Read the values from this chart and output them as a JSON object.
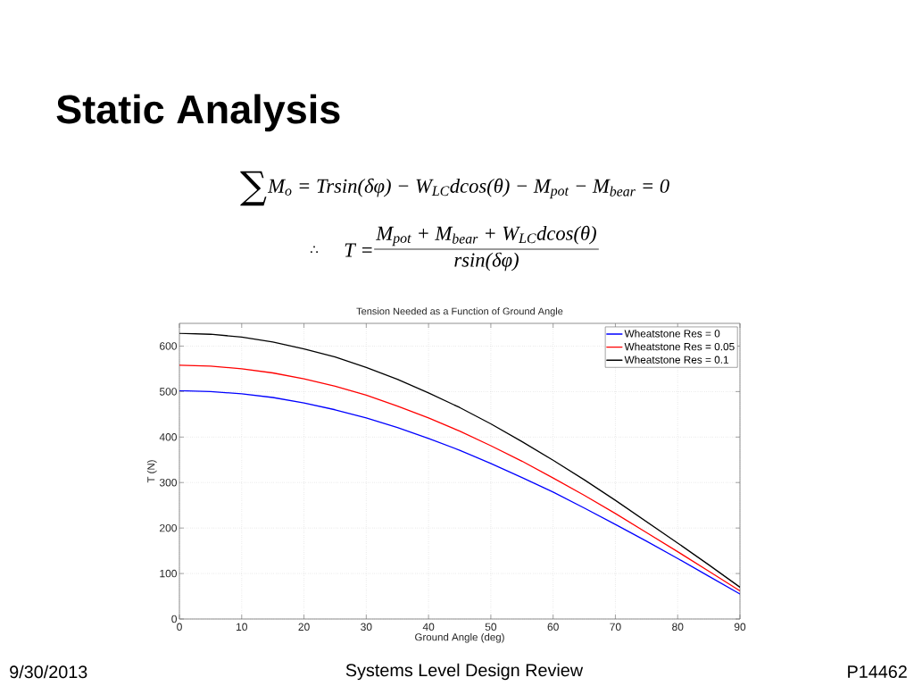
{
  "chart_data": {
    "type": "line",
    "title": "Static Analysis",
    "subtitle": "Tension Needed as a Function of Ground Angle",
    "xlabel": "Ground Angle (deg)",
    "ylabel": "T (N)",
    "x": [
      0,
      5,
      10,
      15,
      20,
      25,
      30,
      35,
      40,
      45,
      50,
      55,
      60,
      65,
      70,
      75,
      80,
      85,
      90
    ],
    "series": [
      {
        "name": "Wheatstone Res = 0",
        "color": "#0000ff",
        "values": [
          502,
          500,
          495,
          487,
          475,
          460,
          442,
          421,
          397,
          371,
          342,
          311,
          279,
          244,
          208,
          171,
          133,
          94,
          55
        ]
      },
      {
        "name": "Wheatstone Res = 0.05",
        "color": "#ff0000",
        "values": [
          558,
          556,
          550,
          541,
          528,
          512,
          492,
          468,
          442,
          413,
          381,
          347,
          310,
          272,
          232,
          190,
          148,
          105,
          62
        ]
      },
      {
        "name": "Wheatstone Res = 0.1",
        "color": "#000000",
        "values": [
          628,
          626,
          620,
          609,
          594,
          576,
          553,
          527,
          497,
          465,
          429,
          390,
          349,
          306,
          261,
          214,
          167,
          119,
          70
        ]
      }
    ],
    "xlim": [
      0,
      90
    ],
    "ylim": [
      0,
      650
    ],
    "xticks": [
      0,
      10,
      20,
      30,
      40,
      50,
      60,
      70,
      80,
      90
    ],
    "yticks": [
      0,
      100,
      200,
      300,
      400,
      500,
      600
    ],
    "grid": true,
    "legend": "top right",
    "line_style": "solid",
    "annotations": [
      "∑",
      "M$_{o}$ = Trsin(δφ) − W$_{LC}$dcos(θ) − M$_{pot}$ − M$_{bear}$ = 0",
      "∴",
      "T =",
      "M$_{pot}$ + M$_{bear}$ + W$_{LC}$dcos(θ)",
      "rsin(δφ)",
      "9/30/2013",
      "Systems Level Design Review",
      "P14462"
    ]
  }
}
